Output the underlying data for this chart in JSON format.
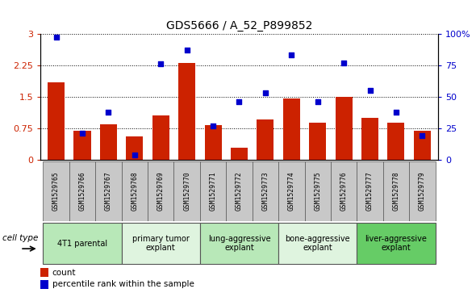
{
  "title": "GDS5666 / A_52_P899852",
  "samples": [
    "GSM1529765",
    "GSM1529766",
    "GSM1529767",
    "GSM1529768",
    "GSM1529769",
    "GSM1529770",
    "GSM1529771",
    "GSM1529772",
    "GSM1529773",
    "GSM1529774",
    "GSM1529775",
    "GSM1529776",
    "GSM1529777",
    "GSM1529778",
    "GSM1529779"
  ],
  "counts": [
    1.85,
    0.68,
    0.85,
    0.55,
    1.05,
    2.3,
    0.82,
    0.28,
    0.95,
    1.45,
    0.88,
    1.5,
    1.0,
    0.88,
    0.68
  ],
  "percentiles": [
    97,
    21,
    38,
    4,
    76,
    87,
    27,
    46,
    53,
    83,
    46,
    77,
    55,
    38,
    19
  ],
  "ylim_left": [
    0,
    3
  ],
  "ylim_right": [
    0,
    100
  ],
  "yticks_left": [
    0,
    0.75,
    1.5,
    2.25,
    3
  ],
  "yticks_right": [
    0,
    25,
    50,
    75,
    100
  ],
  "ytick_labels_left": [
    "0",
    "0.75",
    "1.5",
    "2.25",
    "3"
  ],
  "ytick_labels_right": [
    "0",
    "25",
    "50",
    "75",
    "100%"
  ],
  "groups": [
    {
      "label": "4T1 parental",
      "start": 0,
      "end": 3,
      "color": "#b8e8b8"
    },
    {
      "label": "primary tumor\nexplant",
      "start": 3,
      "end": 6,
      "color": "#dff4df"
    },
    {
      "label": "lung-aggressive\nexplant",
      "start": 6,
      "end": 9,
      "color": "#b8e8b8"
    },
    {
      "label": "bone-aggressive\nexplant",
      "start": 9,
      "end": 12,
      "color": "#dff4df"
    },
    {
      "label": "liver-aggressive\nexplant",
      "start": 12,
      "end": 15,
      "color": "#66cc66"
    }
  ],
  "bar_color": "#cc2200",
  "scatter_color": "#0000cc",
  "cell_type_label": "cell type",
  "legend_count_label": "count",
  "legend_percentile_label": "percentile rank within the sample",
  "sample_bg_color": "#c8c8c8"
}
